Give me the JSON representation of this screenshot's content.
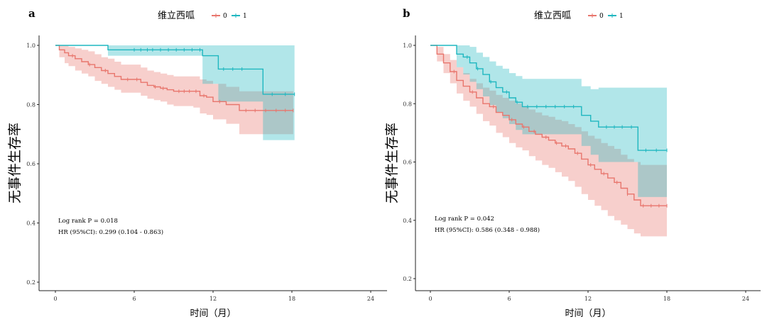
{
  "chart_data": [
    {
      "type": "line",
      "panel_label": "a",
      "legend": {
        "title": "维立西呱",
        "entries": [
          "0",
          "1"
        ],
        "placement": "top-center"
      },
      "xlabel": "时间（月）",
      "ylabel": "无事件生存率",
      "xlim": [
        0,
        24
      ],
      "ylim": [
        0.2,
        1.0
      ],
      "xticks": [
        "0",
        "6",
        "12",
        "18",
        "24"
      ],
      "yticks": [
        "0.2",
        "0.4",
        "0.6",
        "0.8",
        "1.0"
      ],
      "annotations": [
        "Log rank P = 0.018",
        "HR (95%CI): 0.299 (0.104 - 0.863)"
      ],
      "colors": {
        "0": "#e8766d",
        "1": "#1fb7c0"
      },
      "series": [
        {
          "name": "0",
          "x": [
            0,
            0.3,
            0.7,
            1.0,
            1.5,
            2.0,
            2.5,
            3.0,
            3.5,
            4.0,
            4.5,
            5.0,
            6.5,
            7.0,
            7.5,
            8.0,
            8.5,
            9.0,
            10.5,
            11.0,
            11.5,
            12.0,
            13.0,
            14.0,
            18.1
          ],
          "y": [
            1.0,
            0.985,
            0.975,
            0.965,
            0.955,
            0.945,
            0.935,
            0.925,
            0.915,
            0.905,
            0.895,
            0.885,
            0.875,
            0.865,
            0.86,
            0.855,
            0.85,
            0.845,
            0.845,
            0.83,
            0.825,
            0.81,
            0.8,
            0.78,
            0.78
          ],
          "ci_lower": [
            1.0,
            0.96,
            0.94,
            0.93,
            0.915,
            0.905,
            0.895,
            0.88,
            0.87,
            0.86,
            0.85,
            0.84,
            0.83,
            0.82,
            0.815,
            0.81,
            0.8,
            0.795,
            0.79,
            0.77,
            0.765,
            0.75,
            0.735,
            0.7,
            0.7
          ],
          "ci_upper": [
            1.0,
            1.0,
            1.0,
            0.995,
            0.99,
            0.985,
            0.98,
            0.97,
            0.96,
            0.955,
            0.945,
            0.935,
            0.925,
            0.915,
            0.91,
            0.905,
            0.9,
            0.895,
            0.895,
            0.885,
            0.88,
            0.87,
            0.86,
            0.845,
            0.845
          ],
          "censor_x": [
            1.3,
            2.6,
            3.8,
            5.5,
            6.2,
            7.6,
            8.2,
            9.4,
            9.8,
            10.2,
            10.7,
            11.3,
            12.5,
            14.5,
            15.2,
            16.0,
            16.8,
            17.5,
            18.1
          ]
        },
        {
          "name": "1",
          "x": [
            0,
            4.0,
            11.2,
            12.4,
            15.8,
            18.2
          ],
          "y": [
            1.0,
            0.985,
            0.965,
            0.92,
            0.835,
            0.835
          ],
          "ci_lower": [
            1.0,
            0.965,
            0.87,
            0.81,
            0.68,
            0.68
          ],
          "ci_upper": [
            1.0,
            1.0,
            1.0,
            1.0,
            1.0,
            1.0
          ],
          "censor_x": [
            6.0,
            6.5,
            7.0,
            7.4,
            8.0,
            8.6,
            9.2,
            9.8,
            10.4,
            11.0,
            12.8,
            13.5,
            14.2,
            16.5,
            17.5,
            18.2
          ]
        }
      ]
    },
    {
      "type": "line",
      "panel_label": "b",
      "legend": {
        "title": "维立西呱",
        "entries": [
          "0",
          "1"
        ],
        "placement": "top-center"
      },
      "xlabel": "时间（月）",
      "ylabel": "无事件生存率",
      "xlim": [
        0,
        24
      ],
      "ylim": [
        0.2,
        1.0
      ],
      "xticks": [
        "0",
        "6",
        "12",
        "18",
        "24"
      ],
      "yticks": [
        "0.2",
        "0.4",
        "0.6",
        "0.8",
        "1.0"
      ],
      "annotations": [
        "Log rank P = 0.042",
        "HR (95%CI): 0.586 (0.348 - 0.988)"
      ],
      "colors": {
        "0": "#e8766d",
        "1": "#1fb7c0"
      },
      "series": [
        {
          "name": "0",
          "x": [
            0,
            0.5,
            1.0,
            1.5,
            2.0,
            2.5,
            3.0,
            3.5,
            4.0,
            4.5,
            5.0,
            5.5,
            6.0,
            6.5,
            7.0,
            7.5,
            8.0,
            8.5,
            9.0,
            9.5,
            10.0,
            10.5,
            11.0,
            11.5,
            12.0,
            12.5,
            13.0,
            13.5,
            14.0,
            14.5,
            15.0,
            15.5,
            16.0,
            18.0
          ],
          "y": [
            1.0,
            0.97,
            0.94,
            0.91,
            0.88,
            0.86,
            0.84,
            0.82,
            0.8,
            0.79,
            0.77,
            0.76,
            0.745,
            0.73,
            0.72,
            0.705,
            0.695,
            0.685,
            0.675,
            0.665,
            0.655,
            0.645,
            0.63,
            0.61,
            0.59,
            0.575,
            0.56,
            0.545,
            0.53,
            0.51,
            0.49,
            0.47,
            0.45,
            0.45
          ],
          "ci_lower": [
            1.0,
            0.945,
            0.905,
            0.87,
            0.835,
            0.81,
            0.79,
            0.765,
            0.74,
            0.725,
            0.7,
            0.685,
            0.665,
            0.65,
            0.64,
            0.62,
            0.605,
            0.59,
            0.58,
            0.565,
            0.55,
            0.535,
            0.515,
            0.49,
            0.47,
            0.45,
            0.435,
            0.415,
            0.4,
            0.385,
            0.37,
            0.355,
            0.345,
            0.345
          ],
          "ci_upper": [
            1.0,
            0.995,
            0.97,
            0.95,
            0.925,
            0.905,
            0.885,
            0.87,
            0.855,
            0.845,
            0.83,
            0.82,
            0.81,
            0.8,
            0.79,
            0.78,
            0.77,
            0.76,
            0.755,
            0.745,
            0.74,
            0.73,
            0.72,
            0.705,
            0.69,
            0.68,
            0.665,
            0.655,
            0.645,
            0.625,
            0.61,
            0.6,
            0.59,
            0.59
          ],
          "censor_x": [
            1.8,
            3.2,
            4.8,
            6.2,
            7.1,
            7.9,
            8.8,
            9.6,
            10.3,
            11.2,
            12.2,
            13.2,
            14.2,
            15.0,
            16.2,
            16.8,
            17.4,
            18.0
          ]
        },
        {
          "name": "1",
          "x": [
            0,
            2.0,
            2.5,
            3.0,
            3.5,
            4.0,
            4.5,
            5.0,
            5.5,
            6.0,
            6.5,
            7.0,
            11.5,
            12.2,
            12.8,
            15.8,
            18.0
          ],
          "y": [
            1.0,
            0.97,
            0.96,
            0.94,
            0.92,
            0.9,
            0.875,
            0.855,
            0.84,
            0.82,
            0.805,
            0.79,
            0.76,
            0.74,
            0.72,
            0.64,
            0.64
          ],
          "ci_lower": [
            1.0,
            0.925,
            0.9,
            0.875,
            0.85,
            0.825,
            0.795,
            0.77,
            0.75,
            0.73,
            0.71,
            0.695,
            0.655,
            0.625,
            0.6,
            0.48,
            0.48
          ],
          "ci_upper": [
            1.0,
            1.0,
            1.0,
            0.995,
            0.975,
            0.96,
            0.945,
            0.93,
            0.92,
            0.905,
            0.895,
            0.885,
            0.86,
            0.85,
            0.855,
            0.855,
            0.855
          ],
          "censor_x": [
            2.8,
            3.6,
            4.6,
            5.8,
            6.6,
            7.4,
            8.1,
            8.8,
            9.5,
            10.2,
            10.9,
            13.4,
            14.0,
            14.6,
            15.3,
            16.4,
            17.2,
            18.0
          ]
        }
      ]
    }
  ]
}
